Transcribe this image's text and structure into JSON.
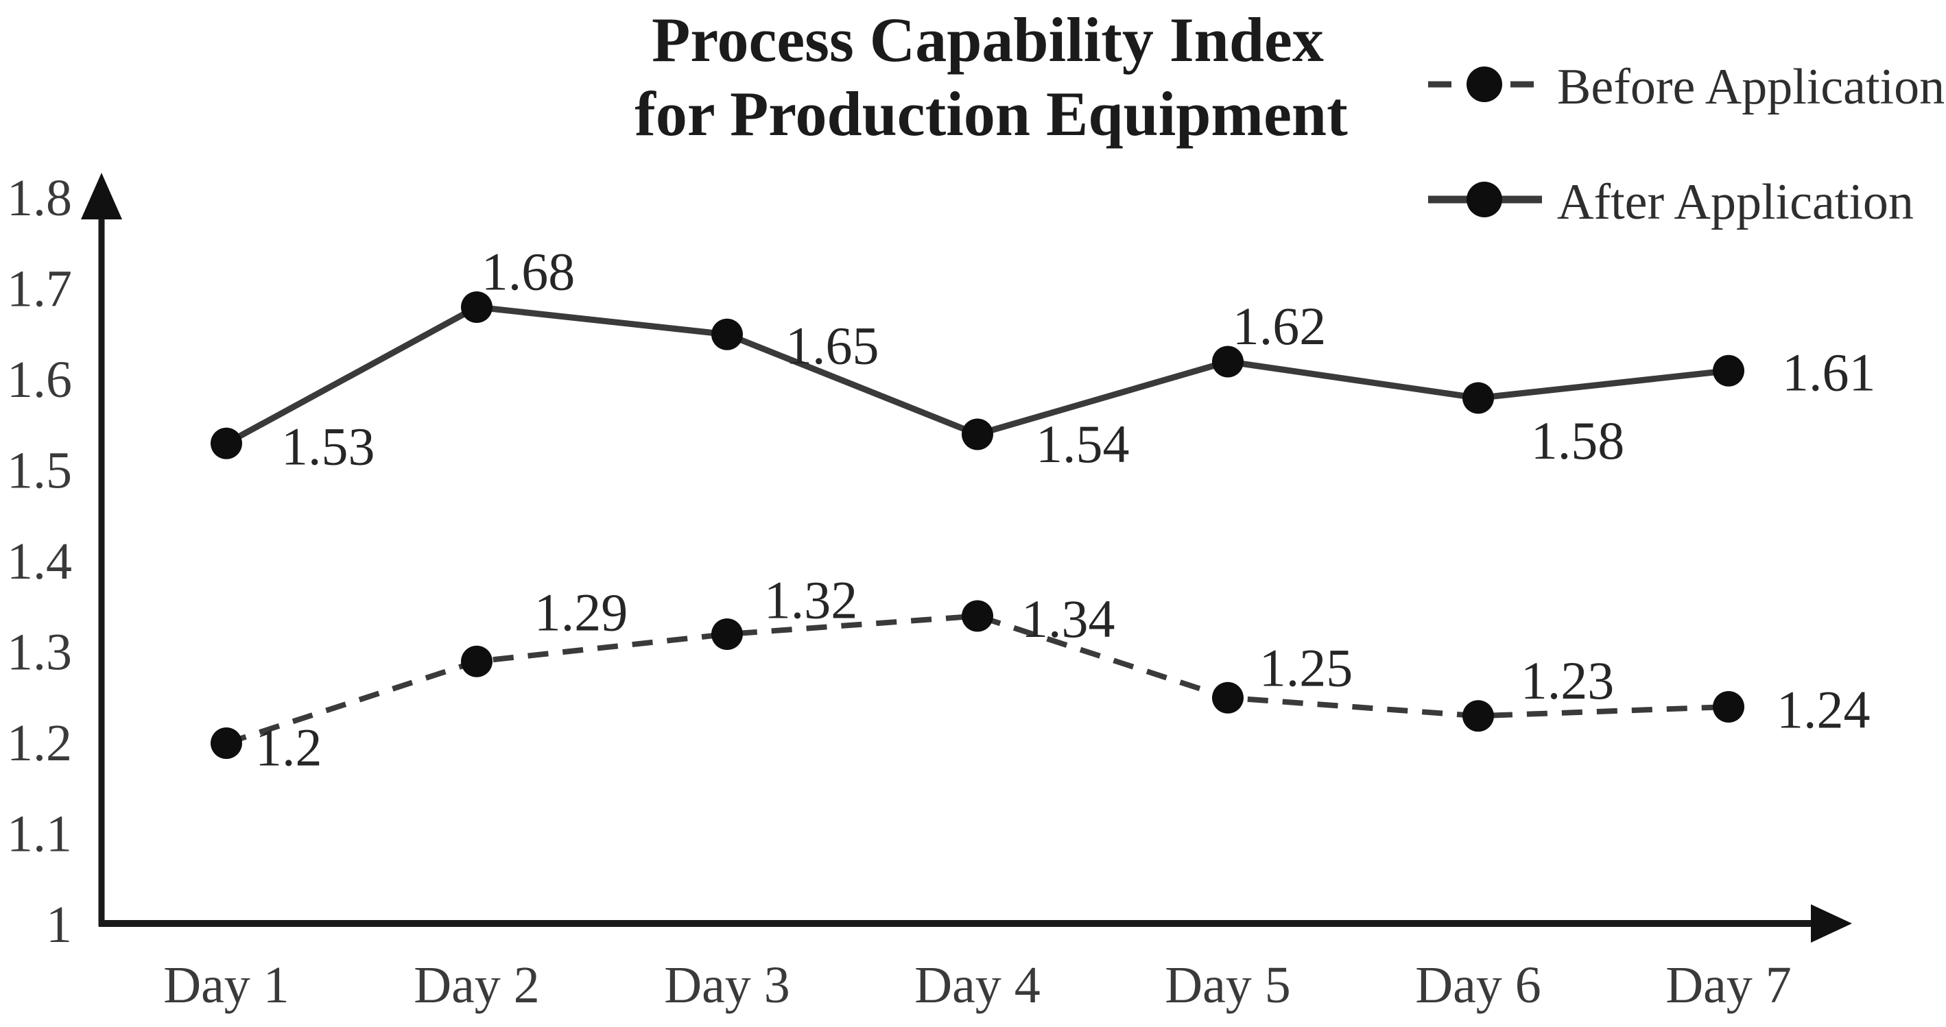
{
  "chart_data": {
    "type": "line",
    "title": "Process Capability Index for Production Equipment",
    "title_lines": [
      "Process Capability Index",
      "for Production Equipment"
    ],
    "categories": [
      "Day 1",
      "Day 2",
      "Day 3",
      "Day 4",
      "Day 5",
      "Day 6",
      "Day 7"
    ],
    "series": [
      {
        "name": "Before Application",
        "line_style": "dashed",
        "values": [
          1.2,
          1.29,
          1.32,
          1.34,
          1.25,
          1.23,
          1.24
        ],
        "point_labels": [
          "1.2",
          "1.29",
          "1.32",
          "1.34",
          "1.25",
          "1.23",
          "1.24"
        ],
        "label_offsets": [
          [
            42,
            6,
            "start"
          ],
          [
            152,
            -72,
            "middle"
          ],
          [
            122,
            -50,
            "middle"
          ],
          [
            64,
            4,
            "start"
          ],
          [
            114,
            -44,
            "middle"
          ],
          [
            130,
            -52,
            "middle"
          ],
          [
            70,
            4,
            "start"
          ]
        ]
      },
      {
        "name": "After Application",
        "line_style": "solid",
        "values": [
          1.53,
          1.68,
          1.65,
          1.54,
          1.62,
          1.58,
          1.61
        ],
        "point_labels": [
          "1.53",
          "1.68",
          "1.65",
          "1.54",
          "1.62",
          "1.58",
          "1.61"
        ],
        "label_offsets": [
          [
            80,
            4,
            "start"
          ],
          [
            75,
            -52,
            "middle"
          ],
          [
            85,
            16,
            "start"
          ],
          [
            85,
            14,
            "start"
          ],
          [
            75,
            -52,
            "middle"
          ],
          [
            145,
            62,
            "middle"
          ],
          [
            78,
            2,
            "start"
          ]
        ]
      }
    ],
    "y_tick_labels": [
      "1.8",
      "1.7",
      "1.6",
      "1.5",
      "1.4",
      "1.3",
      "1.2",
      "1.1",
      "1"
    ],
    "y_tick_values": [
      1.8,
      1.7,
      1.6,
      1.5,
      1.4,
      1.3,
      1.2,
      1.1,
      1.0
    ],
    "ylim": [
      1.0,
      1.8
    ],
    "xlabel": "",
    "ylabel": "",
    "grid": "off",
    "legend_position": "top-right",
    "marker_shape": "filled-circle",
    "colors": {
      "line": "#3a3a3a",
      "marker": "#0e0e0e",
      "label_text": "#262626",
      "tick_text": "#3a3a3a",
      "title_text": "#1b1b1b",
      "background": "#ffffff"
    }
  }
}
